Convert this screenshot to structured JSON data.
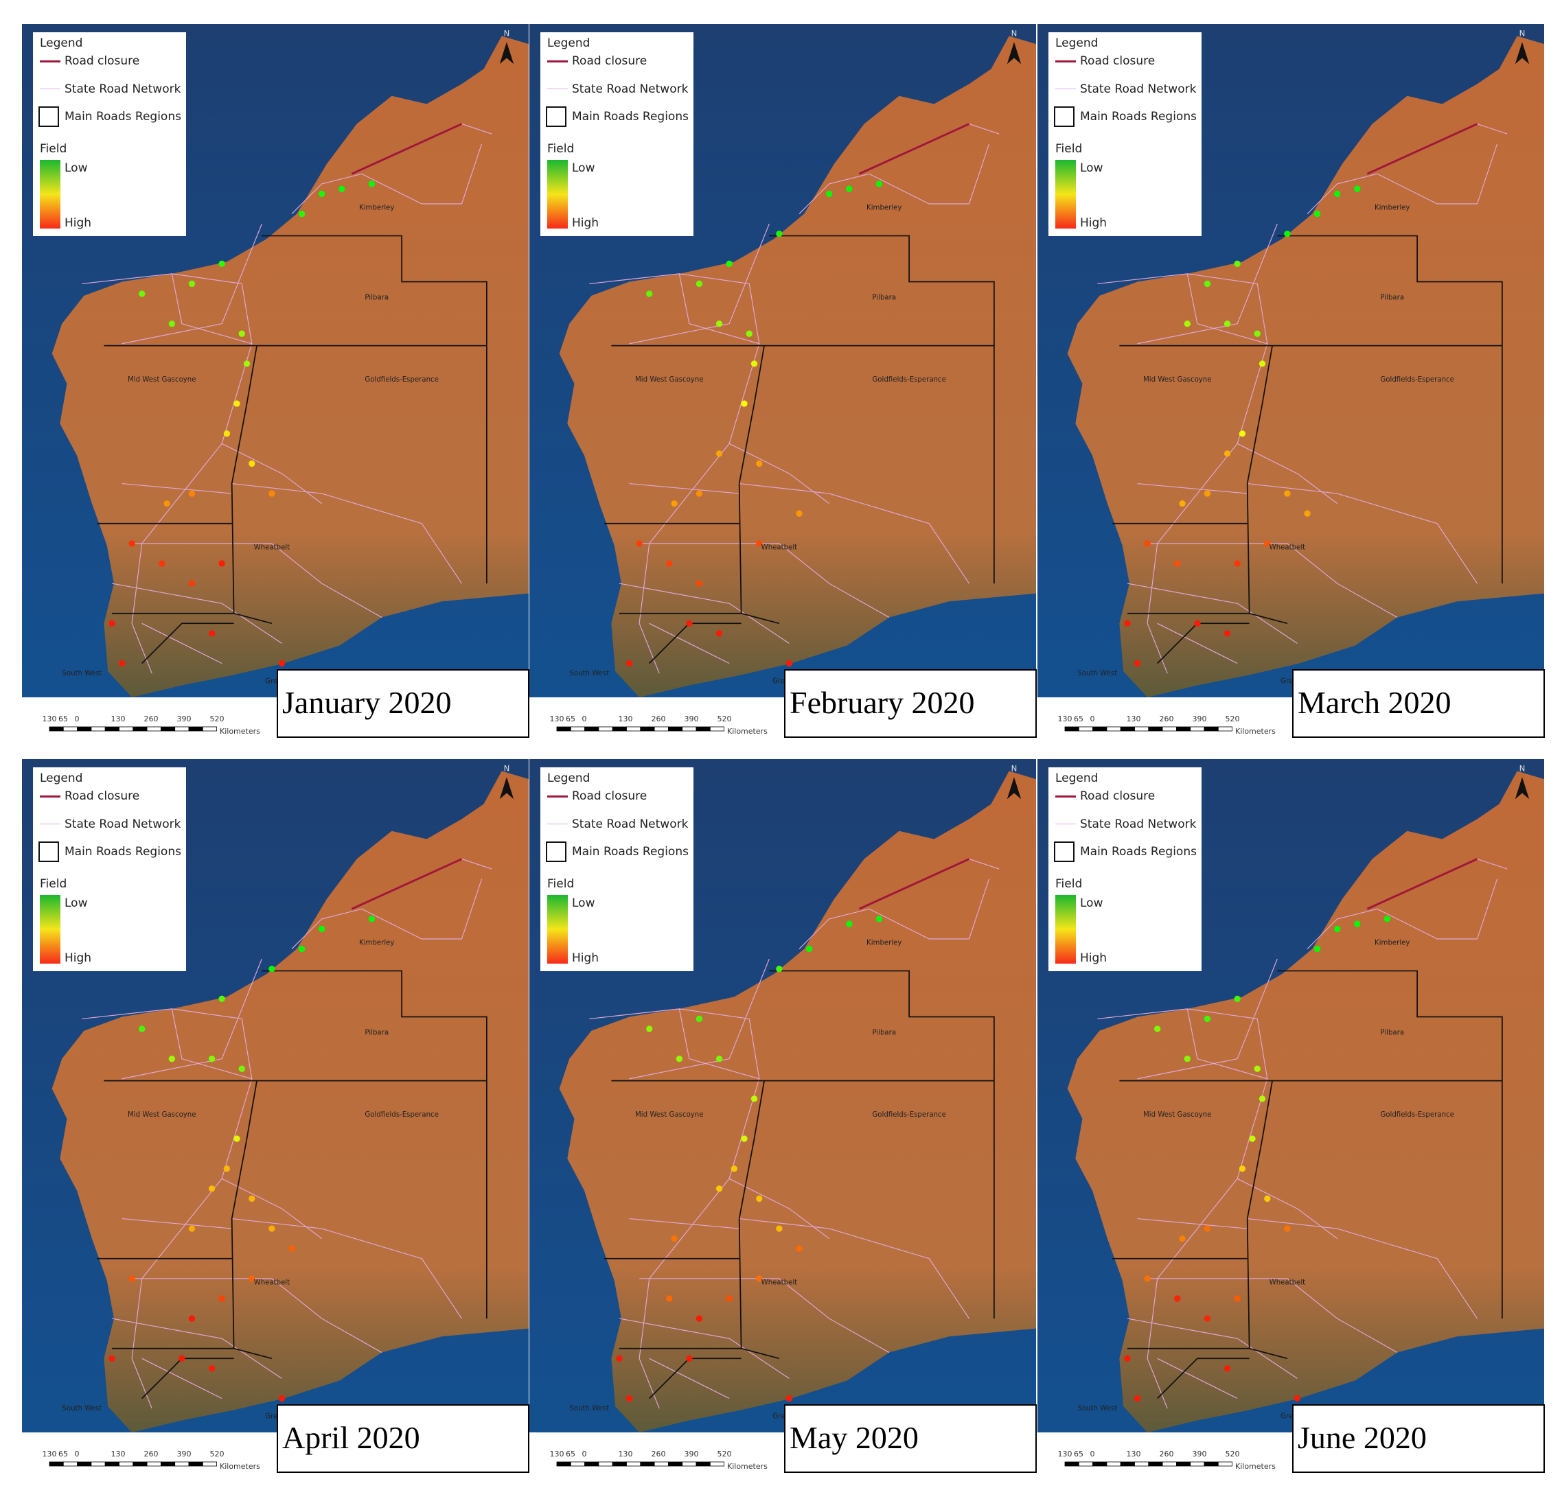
{
  "panels": [
    {
      "title": "January 2020"
    },
    {
      "title": "February 2020"
    },
    {
      "title": "March 2020"
    },
    {
      "title": "April 2020"
    },
    {
      "title": "May 2020"
    },
    {
      "title": "June 2020"
    }
  ],
  "legend": {
    "title": "Legend",
    "items": [
      "Road closure",
      "State Road Network",
      "Main Roads Regions"
    ],
    "field": "Field",
    "low": "Low",
    "high": "High"
  },
  "regions": [
    "Kimberley",
    "Pilbara",
    "Mid West Gascoyne",
    "Goldfields-Esperance",
    "Wheatbelt",
    "South West",
    "Great Southern"
  ],
  "scale_bar": {
    "ticks": [
      "130",
      "65",
      "0",
      "130",
      "260",
      "390",
      "520"
    ],
    "unit": "Kilometers"
  },
  "north": "N"
}
